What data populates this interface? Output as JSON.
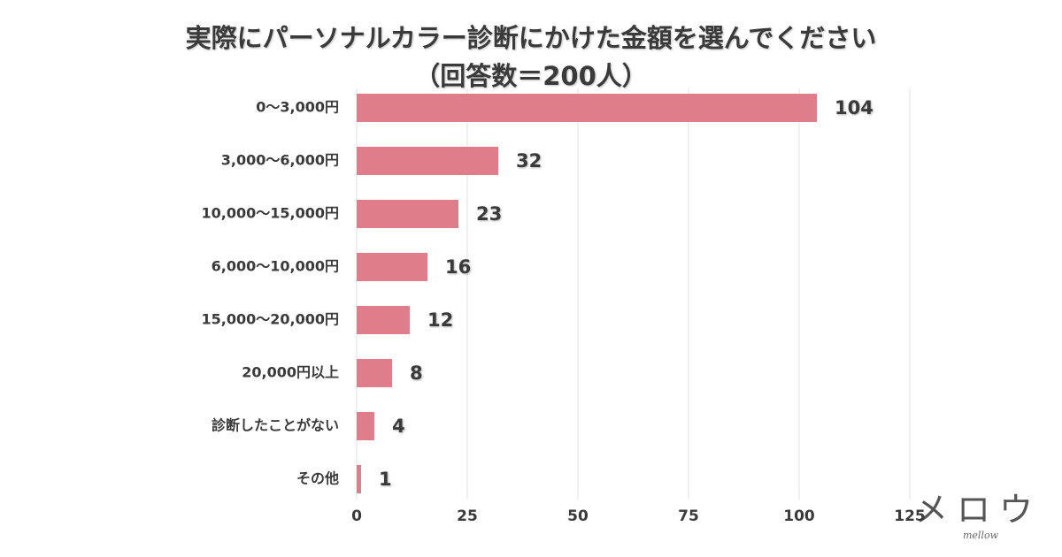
{
  "chart_data": {
    "type": "bar",
    "orientation": "horizontal",
    "title": "実際にパーソナルカラー診断にかけた金額を選んでください",
    "subtitle": "（回答数＝200人）",
    "categories": [
      "0〜3,000円",
      "3,000〜6,000円",
      "10,000〜15,000円",
      "6,000〜10,000円",
      "15,000〜20,000円",
      "20,000円以上",
      "診断したことがない",
      "その他"
    ],
    "values": [
      104,
      32,
      23,
      16,
      12,
      8,
      4,
      1
    ],
    "color": "#df7d8a",
    "xlim": [
      0,
      125
    ],
    "xticks": [
      0,
      25,
      50,
      75,
      100,
      125
    ],
    "grid": true
  },
  "logo": {
    "text": "メロウ",
    "subtext": "mellow"
  }
}
